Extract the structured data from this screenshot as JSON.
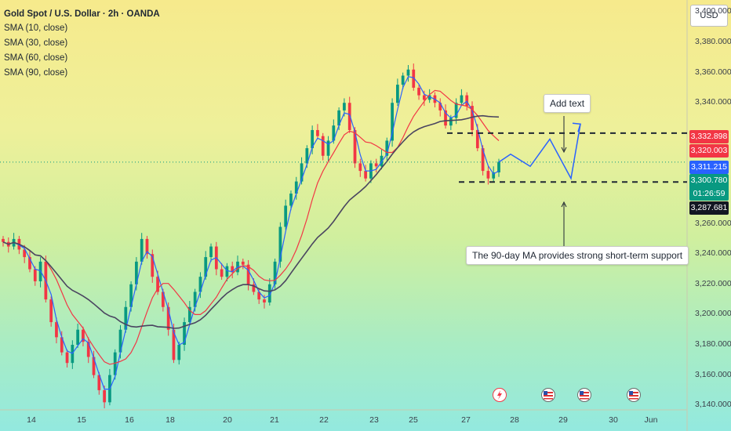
{
  "legend": {
    "title": "Gold Spot / U.S. Dollar · 2h · OANDA",
    "indicators": [
      "SMA (10, close)",
      "SMA (30, close)",
      "SMA (60, close)",
      "SMA (90, close)"
    ]
  },
  "currency": "USD",
  "price_labels": [
    {
      "text": "3,332.898",
      "color": "#f23645",
      "value": 3332.898
    },
    {
      "text": "3,320.003",
      "color": "#f23645",
      "value": 3320.003
    },
    {
      "text": "3,311.215",
      "color": "#2962ff",
      "value": 3311.215
    },
    {
      "text": "3,300.780",
      "color": "#089981",
      "value": 3300.78
    },
    {
      "text": "01:26:59",
      "color": "#089981",
      "value": 3300.78
    },
    {
      "text": "3,287.681",
      "color": "#131722",
      "value": 3287.681
    }
  ],
  "annotations": {
    "add_text": "Add text",
    "support_note": "The 90-day MA provides strong short-term support"
  },
  "colors": {
    "up": "#089981",
    "down": "#f23645",
    "sma10": "#2962ff",
    "sma30": "#f23645",
    "sma90": "#4a4560",
    "projection": "#2962ff"
  },
  "chart_data": {
    "type": "candlestick",
    "instrument": "Gold Spot / U.S. Dollar",
    "interval": "2h",
    "price_ticks": [
      "3,400.000",
      "3,380.000",
      "3,360.000",
      "3,340.000",
      "3,260.000",
      "3,240.000",
      "3,220.000",
      "3,200.000",
      "3,180.000",
      "3,160.000",
      "3,140.000"
    ],
    "price_tick_values": [
      3400,
      3380,
      3360,
      3340,
      3260,
      3240,
      3220,
      3200,
      3180,
      3160,
      3140
    ],
    "date_ticks": [
      "14",
      "15",
      "16",
      "18",
      "20",
      "21",
      "22",
      "23",
      "25",
      "27",
      "28",
      "29",
      "30",
      "Jun"
    ],
    "ylim": [
      3137,
      3408
    ],
    "levels": [
      3320.0,
      3287.68
    ],
    "projection_path": [
      [
        3300.8,
        0
      ],
      [
        3306.0,
        1
      ],
      [
        3298.0,
        2
      ],
      [
        3316.0,
        3
      ],
      [
        3290.0,
        4
      ],
      [
        3326.0,
        5
      ]
    ],
    "closes": [
      3248,
      3245,
      3250,
      3243,
      3238,
      3230,
      3222,
      3235,
      3210,
      3195,
      3185,
      3175,
      3168,
      3180,
      3190,
      3182,
      3172,
      3160,
      3150,
      3142,
      3160,
      3175,
      3190,
      3205,
      3220,
      3235,
      3250,
      3240,
      3225,
      3215,
      3205,
      3190,
      3170,
      3180,
      3195,
      3205,
      3215,
      3225,
      3238,
      3245,
      3230,
      3225,
      3232,
      3228,
      3235,
      3233,
      3220,
      3215,
      3210,
      3208,
      3220,
      3235,
      3258,
      3272,
      3280,
      3288,
      3300,
      3310,
      3322,
      3318,
      3305,
      3315,
      3325,
      3335,
      3340,
      3322,
      3300,
      3295,
      3290,
      3300,
      3298,
      3305,
      3315,
      3340,
      3352,
      3358,
      3362,
      3350,
      3345,
      3342,
      3345,
      3340,
      3335,
      3325,
      3330,
      3340,
      3345,
      3338,
      3322,
      3310,
      3295,
      3290,
      3294,
      3301
    ]
  }
}
